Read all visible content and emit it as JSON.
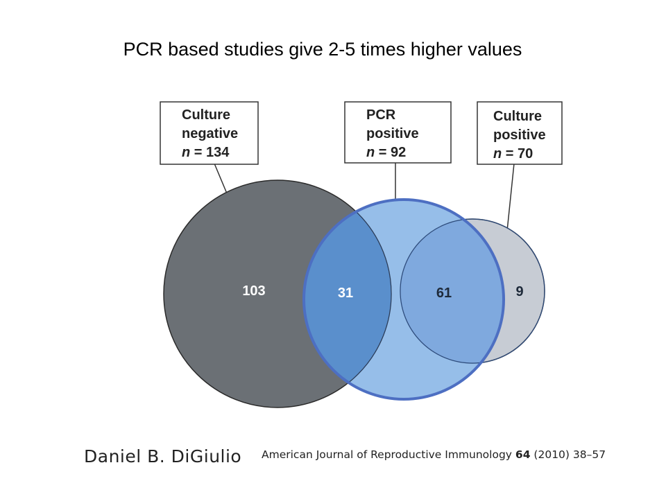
{
  "title": "PCR based studies give 2-5 times higher values",
  "diagram": {
    "boxes": {
      "culture_negative": {
        "line1": "Culture",
        "line2": "negative",
        "n_label": "n",
        "n_value": "134"
      },
      "pcr_positive": {
        "line1": "PCR",
        "line2": "positive",
        "n_label": "n",
        "n_value": "92"
      },
      "culture_positive": {
        "line1": "Culture",
        "line2": "positive",
        "n_label": "n",
        "n_value": "70"
      }
    },
    "regions": {
      "culture_negative_only": "103",
      "negative_and_pcr": "31",
      "positive_and_pcr": "61",
      "culture_positive_only": "9"
    },
    "colors": {
      "culture_negative_fill": "#6b7075",
      "pcr_fill": "#7fb0e4",
      "pcr_stroke": "#4d6fc2",
      "culture_positive_fill": "#c7ccd4",
      "overlap_fill": "#5a8fcc"
    }
  },
  "footer": {
    "author": "Daniel B. DiGiulio",
    "journal": "American Journal of Reproductive Immunology",
    "volume": "64",
    "year_pages": "(2010) 38–57"
  }
}
